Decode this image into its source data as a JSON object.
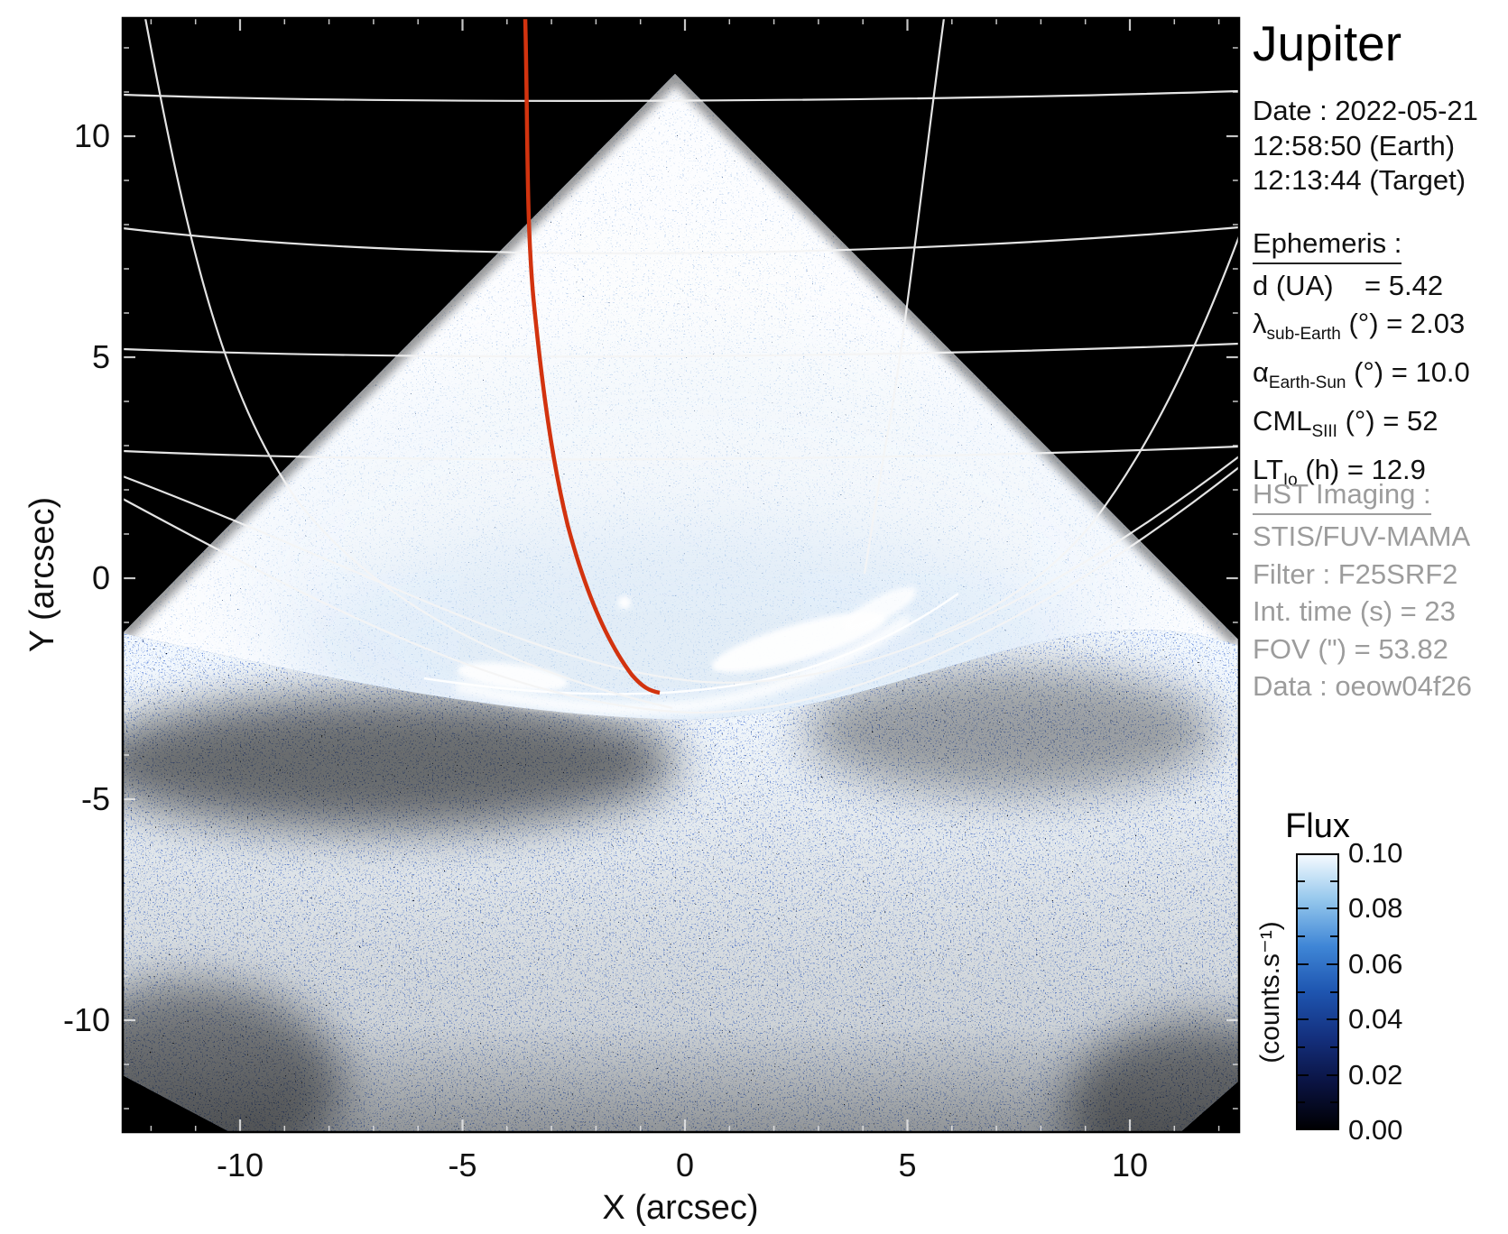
{
  "page": {
    "background": "#ffffff"
  },
  "chart_data": {
    "type": "heatmap",
    "title": "Jupiter",
    "xlabel": "X (arcsec)",
    "ylabel": "Y (arcsec)",
    "xlim": [
      -12.6,
      12.5
    ],
    "ylim": [
      -12.5,
      12.7
    ],
    "x_ticks": [
      -10,
      -5,
      0,
      5,
      10
    ],
    "y_ticks": [
      10,
      5,
      0,
      -5,
      -10
    ],
    "minor_tick_step": 1,
    "grid": false,
    "legend": "none",
    "colorbar": {
      "title": "Flux",
      "unit": "(counts.s⁻¹)",
      "min": 0.0,
      "max": 0.1,
      "tick_labels": [
        "0.10",
        "0.08",
        "0.06",
        "0.04",
        "0.02",
        "0.00"
      ],
      "gradient_bottom_to_top": [
        "#000003",
        "#0a1342",
        "#14307e",
        "#1e55b0",
        "#3f86d6",
        "#93c6ec",
        "#f4faff"
      ]
    },
    "features": {
      "detector_footprint": "STIS FUV-MAMA square aperture rotated ~45° (diamond apex near X=0\", Y=+11.3\")",
      "disk_graticule": "white latitude/longitude wireframe of Jupiter's northern polar region with limb arcs",
      "auroral_oval": "bright FUV main auroral emission arc near Y ≈ -2\" to -3\"",
      "footprint_track": "red satellite-footprint track from top of frame (X ≈ -3.6\") down to the auroral oval",
      "upper_region": "bright disk dayglow speckle (~0.04–0.10 counts/s)",
      "lower_region": "faint sky-background speckle (~0.00–0.03 counts/s)"
    }
  },
  "panel": {
    "title": "Jupiter",
    "date_lines": [
      "Date : 2022-05-21",
      "12:58:50 (Earth)",
      "12:13:44 (Target)"
    ],
    "ephemeris": {
      "heading": "Ephemeris :",
      "lines": [
        {
          "pre": "d (UA)",
          "sub": "",
          "post": "    = 5.42"
        },
        {
          "pre": "λ",
          "sub": "sub-Earth",
          "post": " (°) = 2.03"
        },
        {
          "pre": "α",
          "sub": "Earth-Sun",
          "post": " (°) = 10.0"
        },
        {
          "pre": "CML",
          "sub": "SIII",
          "post": " (°) = 52"
        },
        {
          "pre": "LT",
          "sub": "Io",
          "post": " (h) = 12.9"
        }
      ]
    },
    "hst": {
      "heading": "HST Imaging :",
      "lines": [
        "STIS/FUV-MAMA",
        "Filter : F25SRF2",
        "Int. time (s) = 23",
        "FOV (\") = 53.82",
        "Data : oeow04f26"
      ]
    }
  },
  "colors": {
    "track_red": "#d2330f",
    "graticule_white": "#f5f5f5",
    "panel_gray": "#9c9c9c",
    "text_black": "#111111",
    "plot_background": "#000000"
  }
}
